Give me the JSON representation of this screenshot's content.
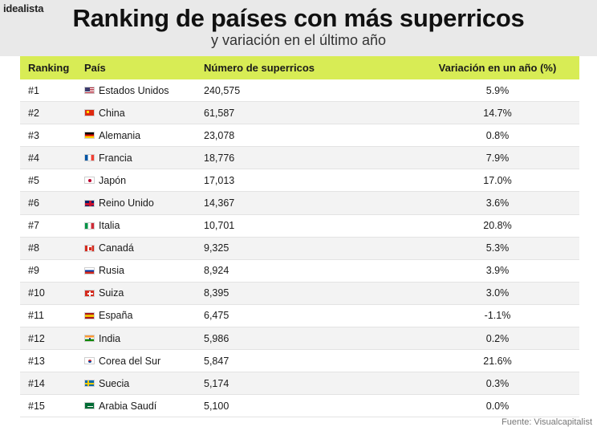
{
  "brand": "idealista",
  "title": "Ranking de países con más superricos",
  "subtitle": "y variación en el último año",
  "headers": {
    "rank": "Ranking",
    "country": "País",
    "count": "Número de superricos",
    "change": "Variación en un año (%)"
  },
  "rows": [
    {
      "rank": "#1",
      "flag": "us-flag-icon",
      "country": "Estados Unidos",
      "count": "240,575",
      "change": "5.9%"
    },
    {
      "rank": "#2",
      "flag": "cn-flag-icon",
      "country": "China",
      "count": "61,587",
      "change": "14.7%"
    },
    {
      "rank": "#3",
      "flag": "de-flag-icon",
      "country": "Alemania",
      "count": "23,078",
      "change": "0.8%"
    },
    {
      "rank": "#4",
      "flag": "fr-flag-icon",
      "country": "Francia",
      "count": "18,776",
      "change": "7.9%"
    },
    {
      "rank": "#5",
      "flag": "jp-flag-icon",
      "country": "Japón",
      "count": "17,013",
      "change": "17.0%"
    },
    {
      "rank": "#6",
      "flag": "gb-flag-icon",
      "country": "Reino Unido",
      "count": "14,367",
      "change": "3.6%"
    },
    {
      "rank": "#7",
      "flag": "it-flag-icon",
      "country": "Italia",
      "count": "10,701",
      "change": "20.8%"
    },
    {
      "rank": "#8",
      "flag": "ca-flag-icon",
      "country": "Canadá",
      "count": "9,325",
      "change": "5.3%"
    },
    {
      "rank": "#9",
      "flag": "ru-flag-icon",
      "country": "Rusia",
      "count": "8,924",
      "change": "3.9%"
    },
    {
      "rank": "#10",
      "flag": "ch-flag-icon",
      "country": "Suiza",
      "count": "8,395",
      "change": "3.0%"
    },
    {
      "rank": "#11",
      "flag": "es-flag-icon",
      "country": "España",
      "count": "6,475",
      "change": "-1.1%"
    },
    {
      "rank": "#12",
      "flag": "in-flag-icon",
      "country": "India",
      "count": "5,986",
      "change": "0.2%"
    },
    {
      "rank": "#13",
      "flag": "kr-flag-icon",
      "country": "Corea del Sur",
      "count": "5,847",
      "change": "21.6%"
    },
    {
      "rank": "#14",
      "flag": "se-flag-icon",
      "country": "Suecia",
      "count": "5,174",
      "change": "0.3%"
    },
    {
      "rank": "#15",
      "flag": "sa-flag-icon",
      "country": "Arabia Saudí",
      "count": "5,100",
      "change": "0.0%"
    }
  ],
  "source": "Fuente: Visualcapitalist",
  "colors": {
    "header_band": "#e9e9e9",
    "table_header": "#d8ec55",
    "row_alt": "#f3f3f3"
  }
}
